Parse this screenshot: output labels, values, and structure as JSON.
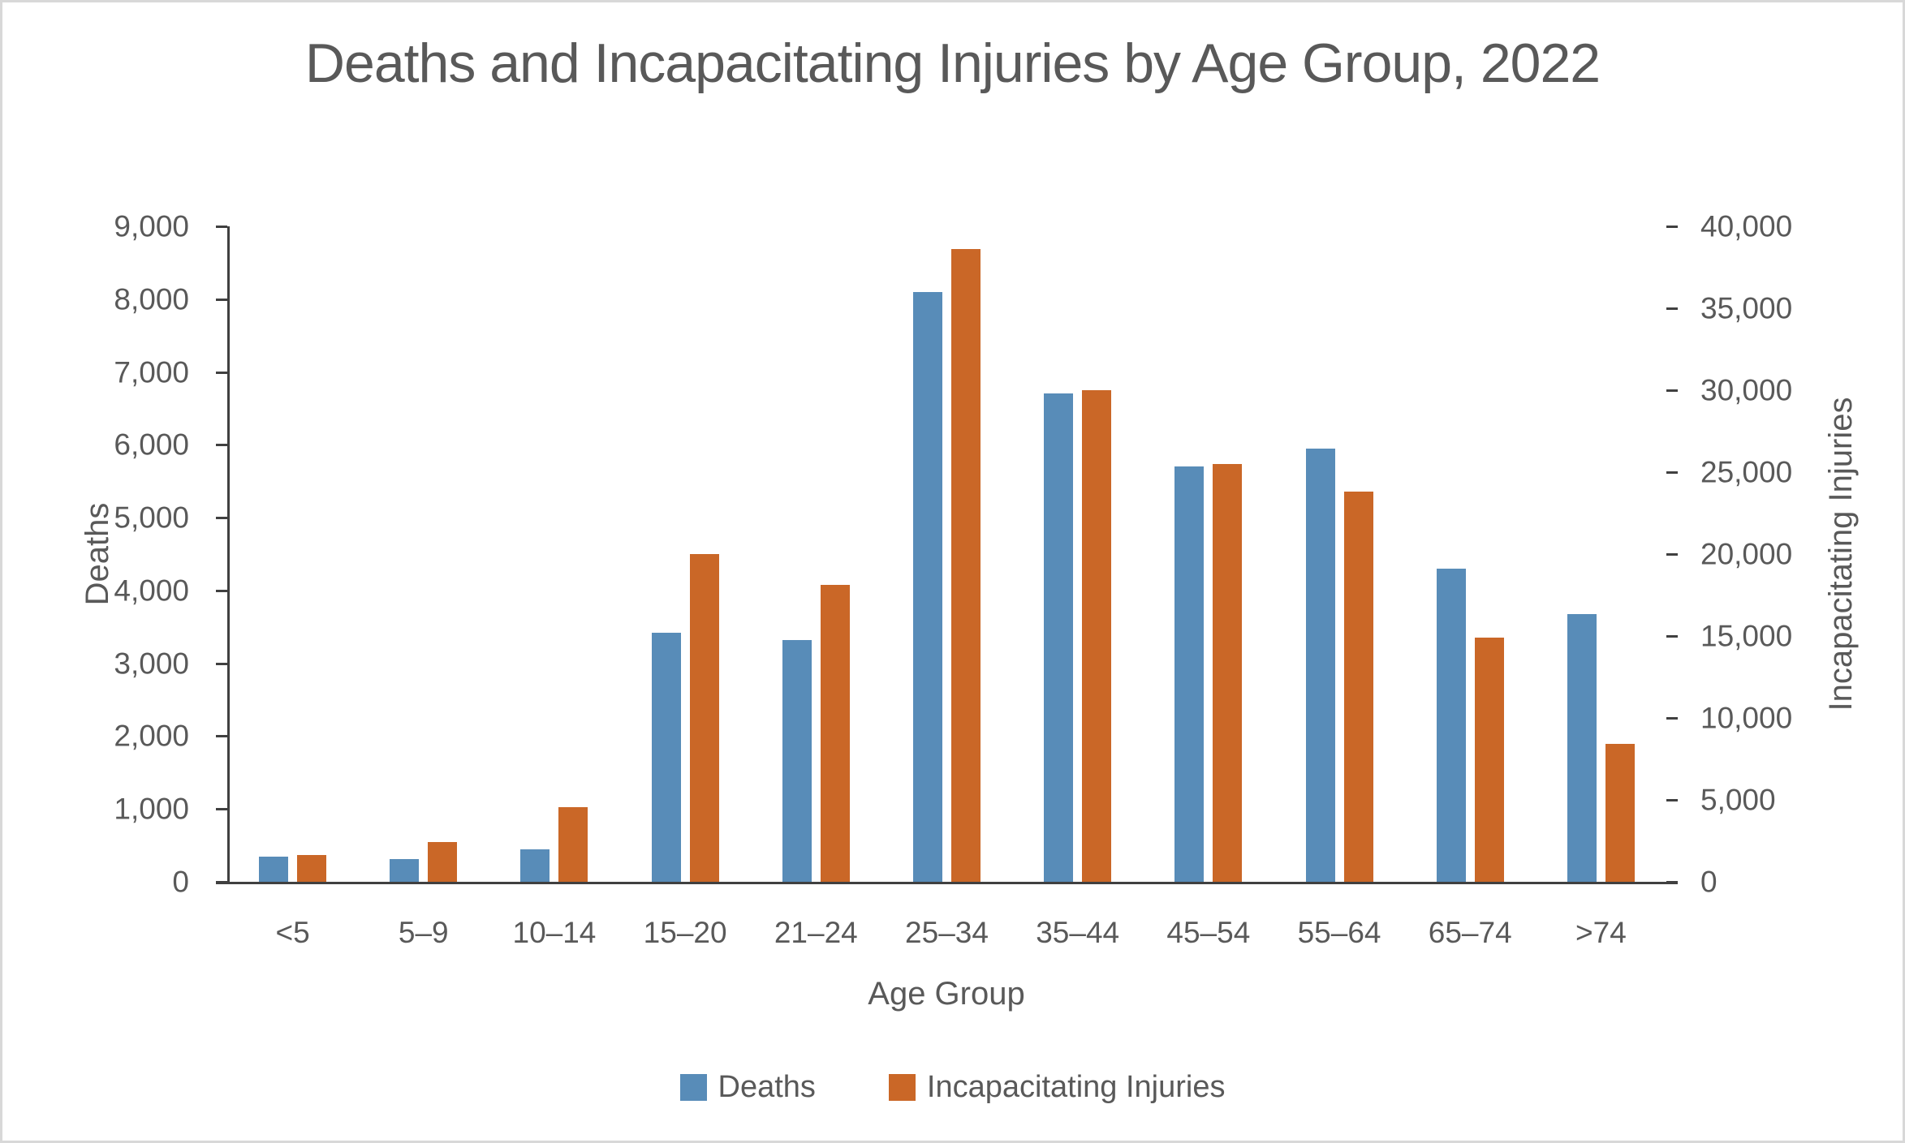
{
  "title": "Deaths and Incapacitating Injuries by Age Group, 2022",
  "chart_data": {
    "type": "bar",
    "categories": [
      "<5",
      "5–9",
      "10–14",
      "15–20",
      "21–24",
      "25–34",
      "35–44",
      "45–54",
      "55–64",
      "65–74",
      ">74"
    ],
    "series": [
      {
        "name": "Deaths",
        "axis": "left",
        "color": "#588CB8",
        "values": [
          350,
          310,
          450,
          3420,
          3320,
          8100,
          6700,
          5700,
          5950,
          4300,
          3680
        ]
      },
      {
        "name": "Incapacitating Injuries",
        "axis": "right",
        "color": "#CA6727",
        "values": [
          1650,
          2450,
          4550,
          20000,
          18100,
          38600,
          30000,
          25500,
          23800,
          14900,
          8400
        ]
      }
    ],
    "xlabel": "Age Group",
    "left_axis": {
      "label": "Deaths",
      "min": 0,
      "max": 9000,
      "step": 1000
    },
    "right_axis": {
      "label": "Incapacitating Injuries",
      "min": 0,
      "max": 40000,
      "step": 5000
    },
    "legend_position": "bottom",
    "grid": false,
    "axis_line_color": "#404040",
    "text_color": "#595959"
  }
}
